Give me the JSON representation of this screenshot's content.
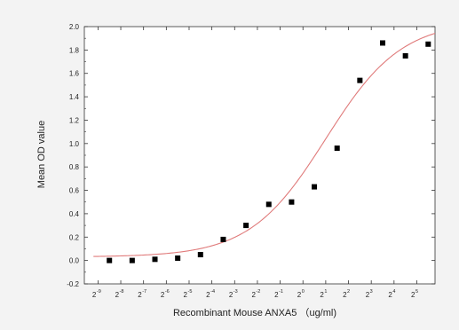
{
  "chart_data": {
    "type": "scatter",
    "title": "",
    "xlabel": "Recombinant Mouse ANXA5 （ug/ml)",
    "ylabel": "Mean OD value",
    "x_scale": "log2",
    "x_ticks": [
      {
        "base": "2",
        "exp": "-9"
      },
      {
        "base": "2",
        "exp": "-8"
      },
      {
        "base": "2",
        "exp": "-7"
      },
      {
        "base": "2",
        "exp": "-6"
      },
      {
        "base": "2",
        "exp": "-5"
      },
      {
        "base": "2",
        "exp": "-4"
      },
      {
        "base": "2",
        "exp": "-3"
      },
      {
        "base": "2",
        "exp": "-2"
      },
      {
        "base": "2",
        "exp": "-1"
      },
      {
        "base": "2",
        "exp": "0"
      },
      {
        "base": "2",
        "exp": "1"
      },
      {
        "base": "2",
        "exp": "2"
      },
      {
        "base": "2",
        "exp": "3"
      },
      {
        "base": "2",
        "exp": "4"
      },
      {
        "base": "2",
        "exp": "5"
      }
    ],
    "y_ticks": [
      "-0.2",
      "0.0",
      "0.2",
      "0.4",
      "0.6",
      "0.8",
      "1.0",
      "1.2",
      "1.4",
      "1.6",
      "1.8",
      "2.0"
    ],
    "xlim_log2": [
      -9.6,
      5.8
    ],
    "ylim": [
      -0.2,
      2.0
    ],
    "grid": false,
    "series": [
      {
        "marker": "square",
        "color": "#000000",
        "x_log2": [
          -8.5,
          -7.5,
          -6.5,
          -5.5,
          -4.5,
          -3.5,
          -2.5,
          -1.5,
          -0.5,
          0.5,
          1.5,
          2.5,
          3.5,
          4.5,
          5.5
        ],
        "y": [
          0.0,
          0.0,
          0.01,
          0.02,
          0.05,
          0.18,
          0.3,
          0.48,
          0.5,
          0.63,
          0.96,
          1.54,
          1.86,
          1.75,
          1.85
        ]
      }
    ],
    "fit": {
      "type": "logistic",
      "color": "#e07b7b",
      "bottom": 0.03,
      "top": 2.05,
      "center_log2": 1.0,
      "slope": 0.6
    }
  }
}
